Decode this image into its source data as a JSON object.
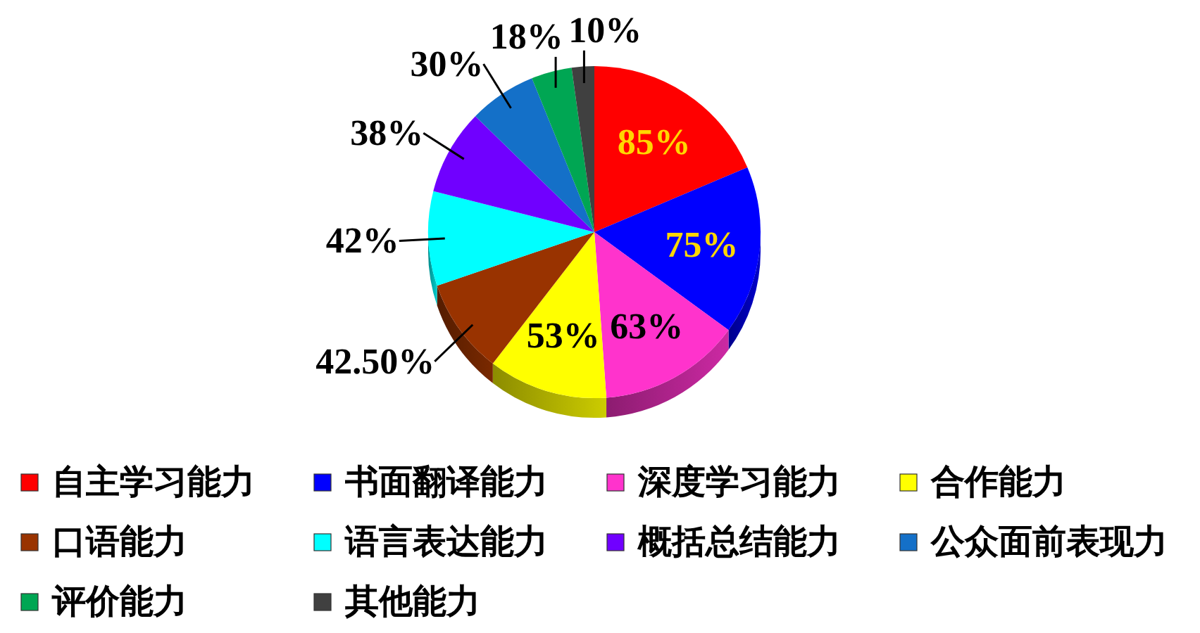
{
  "chart_data": {
    "type": "pie",
    "categories": [
      "自主学习能力",
      "书面翻译能力",
      "深度学习能力",
      "合作能力",
      "口语能力",
      "语言表达能力",
      "概括总结能力",
      "公众面前表现力",
      "评价能力",
      "其他能力"
    ],
    "values": [
      85,
      75,
      63,
      53,
      42.5,
      42,
      38,
      30,
      18,
      10
    ],
    "colors": [
      "#ff0000",
      "#0000ff",
      "#ff33cc",
      "#ffff00",
      "#993300",
      "#00ffff",
      "#7000ff",
      "#1470c8",
      "#00a653",
      "#404040"
    ],
    "value_labels": [
      "85%",
      "75%",
      "63%",
      "53%",
      "42.50%",
      "42%",
      "38%",
      "30%",
      "18%",
      "10%"
    ],
    "legend": "bottom"
  }
}
